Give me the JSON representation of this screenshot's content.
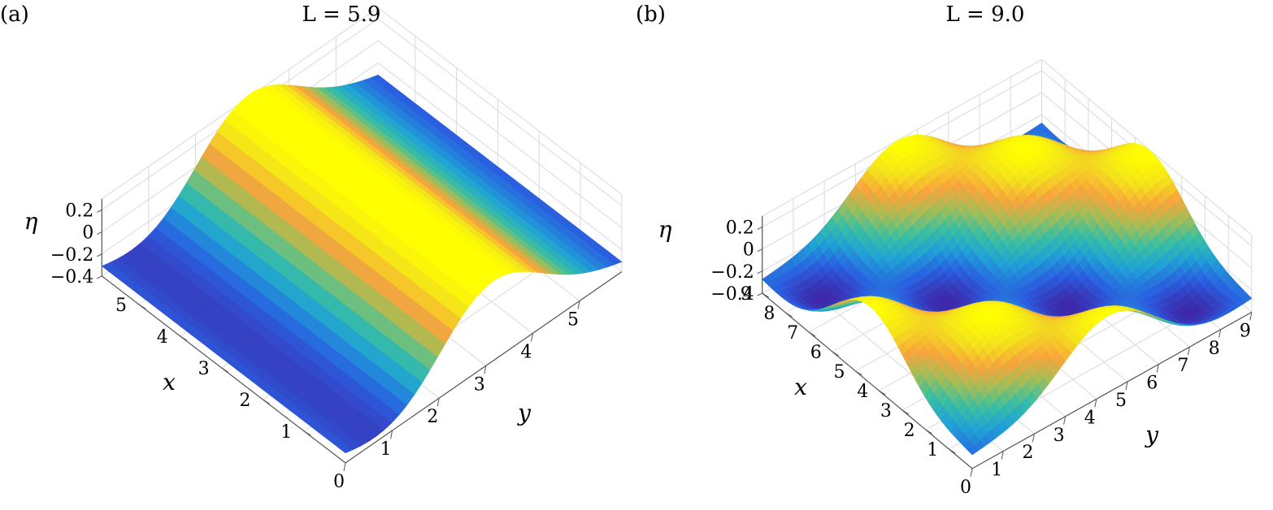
{
  "chart_data": [
    {
      "panel": "(a)",
      "type": "surface",
      "title": "L = 5.9",
      "zlabel": "η",
      "xlabel": "x",
      "ylabel": "y",
      "xlim": [
        0,
        5.9
      ],
      "ylim": [
        0,
        5.9
      ],
      "zlim": [
        -0.4,
        0.3
      ],
      "x_ticks": [
        "1",
        "2",
        "3",
        "4",
        "5"
      ],
      "x_tick_values": [
        1,
        2,
        3,
        4,
        5
      ],
      "y_ticks": [
        "0",
        "1",
        "2",
        "3",
        "4",
        "5"
      ],
      "y_tick_values": [
        0,
        1,
        2,
        3,
        4,
        5
      ],
      "z_ticks": [
        "0.2",
        "0",
        "−0.2",
        "−0.4"
      ],
      "z_tick_values": [
        0.2,
        0,
        -0.2,
        -0.4
      ],
      "surface": {
        "variation": "along y only",
        "eta_min": -0.4,
        "eta_max": 0.3,
        "trough_y": 1.5,
        "crest_y": 4.4
      },
      "grid": true,
      "colormap": [
        "#3e26a8",
        "#2a5fe0",
        "#1fa2d6",
        "#3bbfa0",
        "#a4be56",
        "#f9a43c",
        "#f3e31b",
        "#ffff00"
      ]
    },
    {
      "panel": "(b)",
      "type": "surface",
      "title": "L = 9.0",
      "zlabel": "η",
      "xlabel": "x",
      "ylabel": "y",
      "xlim": [
        0,
        9
      ],
      "ylim": [
        0,
        9
      ],
      "zlim": [
        -0.4,
        0.3
      ],
      "x_ticks": [
        "1",
        "2",
        "3",
        "4",
        "5",
        "6",
        "7",
        "8",
        "9"
      ],
      "x_tick_values": [
        1,
        2,
        3,
        4,
        5,
        6,
        7,
        8,
        9
      ],
      "y_ticks": [
        "0",
        "1",
        "2",
        "3",
        "4",
        "5",
        "6",
        "7",
        "8",
        "9"
      ],
      "y_tick_values": [
        0,
        1,
        2,
        3,
        4,
        5,
        6,
        7,
        8,
        9
      ],
      "z_ticks": [
        "0.2",
        "0",
        "−0.2",
        "−0.4"
      ],
      "z_tick_values": [
        0.2,
        0,
        -0.2,
        -0.4
      ],
      "surface": {
        "variation": "along x and y",
        "eta_min": -0.4,
        "eta_max": 0.3,
        "wavenumber_diagonal": 2
      },
      "grid": true,
      "colormap": [
        "#3e26a8",
        "#2a5fe0",
        "#1fa2d6",
        "#3bbfa0",
        "#a4be56",
        "#f9a43c",
        "#f3e31b",
        "#ffff00"
      ]
    }
  ]
}
